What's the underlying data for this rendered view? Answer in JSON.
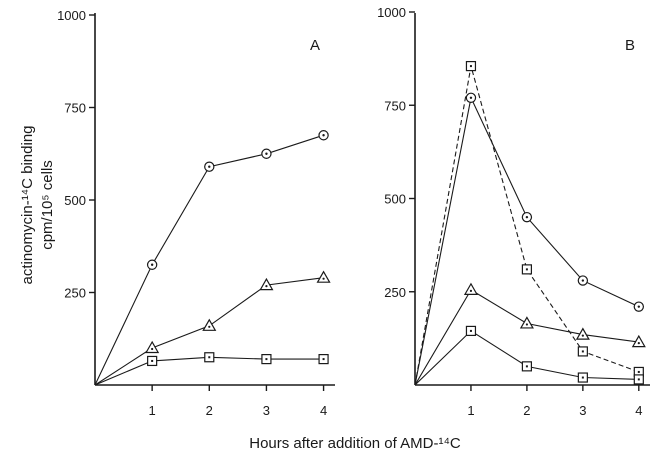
{
  "figure": {
    "ylabel_line1": "actinomycin-¹⁴C binding",
    "ylabel_line2": "cpm/10⁵ cells",
    "xlabel": "Hours after addition of  AMD-¹⁴C"
  },
  "chart_data": [
    {
      "panel": "A",
      "type": "line",
      "xlim": [
        0,
        4.2
      ],
      "ylim": [
        0,
        1000
      ],
      "x_ticks": [
        1,
        2,
        3,
        4
      ],
      "y_ticks": [
        250,
        500,
        750,
        1000
      ],
      "series": [
        {
          "marker": "circle",
          "style": "solid",
          "x": [
            0,
            1,
            2,
            3,
            4
          ],
          "y": [
            0,
            325,
            590,
            625,
            675
          ]
        },
        {
          "marker": "triangle",
          "style": "solid",
          "x": [
            0,
            1,
            2,
            3,
            4
          ],
          "y": [
            0,
            100,
            160,
            270,
            290
          ]
        },
        {
          "marker": "square",
          "style": "solid",
          "x": [
            0,
            1,
            2,
            3,
            4
          ],
          "y": [
            0,
            65,
            75,
            70,
            70
          ]
        }
      ]
    },
    {
      "panel": "B",
      "type": "line",
      "xlim": [
        0,
        4.2
      ],
      "ylim": [
        0,
        1000
      ],
      "x_ticks": [
        1,
        2,
        3,
        4
      ],
      "y_ticks": [
        250,
        500,
        750,
        1000
      ],
      "series": [
        {
          "marker": "circle",
          "style": "solid",
          "x": [
            0,
            1,
            2,
            3,
            4
          ],
          "y": [
            0,
            770,
            450,
            280,
            210
          ]
        },
        {
          "marker": "square",
          "style": "dashed",
          "x": [
            0,
            1,
            2,
            3,
            4
          ],
          "y": [
            0,
            855,
            310,
            90,
            35
          ]
        },
        {
          "marker": "triangle",
          "style": "solid",
          "x": [
            0,
            1,
            2,
            3,
            4
          ],
          "y": [
            0,
            255,
            165,
            135,
            115
          ]
        },
        {
          "marker": "square",
          "style": "solid",
          "x": [
            0,
            1,
            2,
            3,
            4
          ],
          "y": [
            0,
            145,
            50,
            20,
            15
          ]
        }
      ]
    }
  ]
}
